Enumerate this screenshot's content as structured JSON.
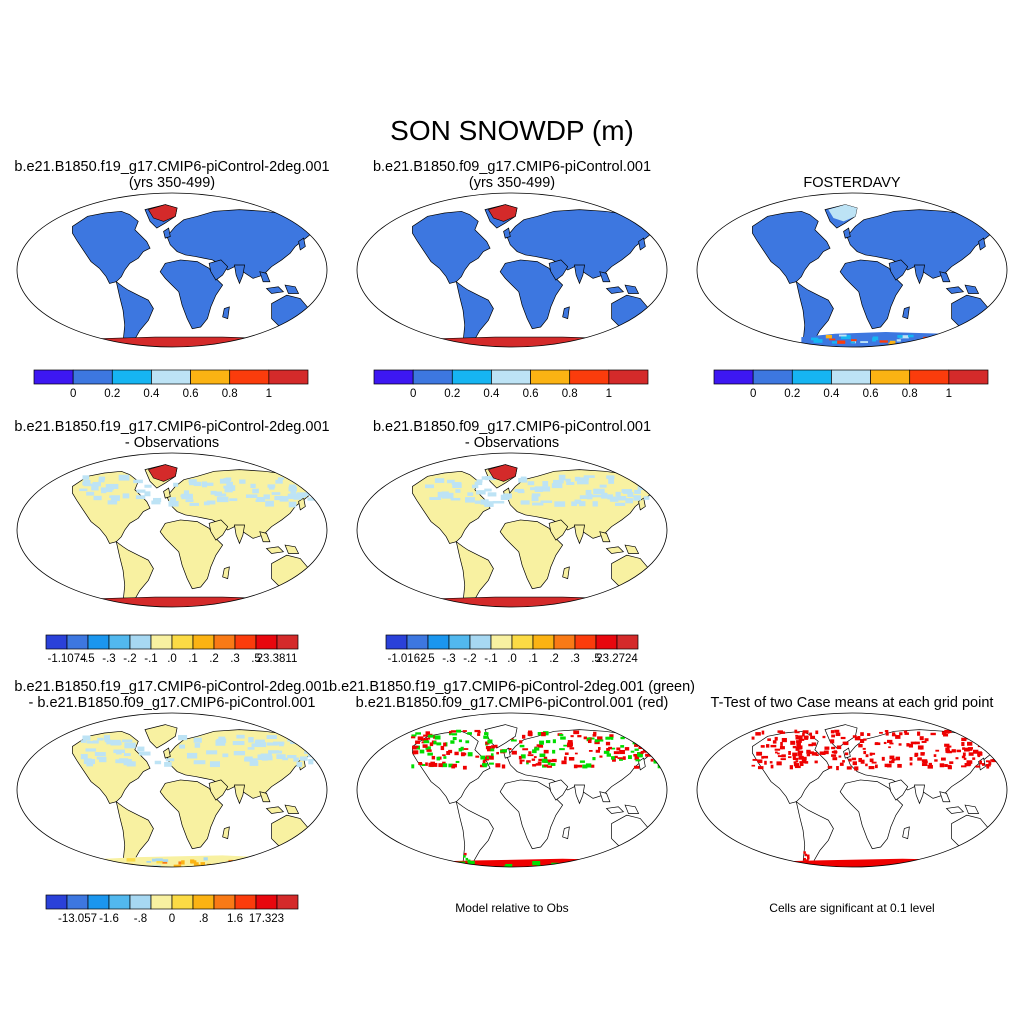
{
  "title": "SON SNOWDP (m)",
  "colors": {
    "seq": [
      "#3d17f2",
      "#3d77e0",
      "#16b5f2",
      "#bde3f5",
      "#fbb313",
      "#fb3c0c",
      "#d42a2a"
    ],
    "div": [
      "#3d17f2",
      "#2a41d9",
      "#3d77e0",
      "#1b96ee",
      "#52b8ee",
      "#a7d8f2",
      "#f8f1a1",
      "#fbdb45",
      "#fbb313",
      "#f97a16",
      "#fb3c0c",
      "#e8070e",
      "#d42a2a"
    ],
    "land": "#3d77e0",
    "snow": "#d42a2a",
    "diffland": "#f8f1a1",
    "difflight": "#bde3f5",
    "green": "#00dd00",
    "red": "#ee0000"
  },
  "panels": [
    {
      "id": "p1",
      "title1": "b.e21.B1850.f19_g17.CMIP6-piControl-2deg.001",
      "title2": "(yrs 350-499)",
      "kind": "seq"
    },
    {
      "id": "p2",
      "title1": "b.e21.B1850.f09_g17.CMIP6-piControl.001",
      "title2": "(yrs 350-499)",
      "kind": "seq"
    },
    {
      "id": "p3",
      "title1": "FOSTERDAVY",
      "title2": "",
      "kind": "seq"
    },
    {
      "id": "p4",
      "title1": "b.e21.B1850.f19_g17.CMIP6-piControl-2deg.001",
      "title2": "- Observations",
      "kind": "div"
    },
    {
      "id": "p5",
      "title1": "b.e21.B1850.f09_g17.CMIP6-piControl.001",
      "title2": "- Observations",
      "kind": "div"
    },
    {
      "id": "p6",
      "title1": "b.e21.B1850.f19_g17.CMIP6-piControl-2deg.001",
      "title2": "- b.e21.B1850.f09_g17.CMIP6-piControl.001",
      "kind": "div"
    },
    {
      "id": "p7",
      "title1": "b.e21.B1850.f19_g17.CMIP6-piControl-2deg.001 (green)",
      "title2": "b.e21.B1850.f09_g17.CMIP6-piControl.001 (red)",
      "kind": "sig2",
      "footer": "Model relative to Obs"
    },
    {
      "id": "p8",
      "title1": "T-Test of two Case means at each grid point",
      "title2": "",
      "kind": "sig",
      "footer": "Cells are significant at 0.1 level"
    }
  ],
  "colorbars": {
    "seq_labels": [
      "0",
      "0.2",
      "0.4",
      "0.6",
      "0.8",
      "1"
    ],
    "p4_labels": [
      "-1.1074",
      "-.5",
      "-.3",
      "-.2",
      "-.1",
      ".0",
      ".1",
      ".2",
      ".3",
      ".5",
      "23.3811"
    ],
    "p5_labels": [
      "-1.0162",
      "-.5",
      "-.3",
      "-.2",
      "-.1",
      ".0",
      ".1",
      ".2",
      ".3",
      ".5",
      "23.2724"
    ],
    "p6_labels": [
      "-13.057",
      "-1.6",
      "-.8",
      "0",
      ".8",
      "1.6",
      "17.323"
    ]
  }
}
